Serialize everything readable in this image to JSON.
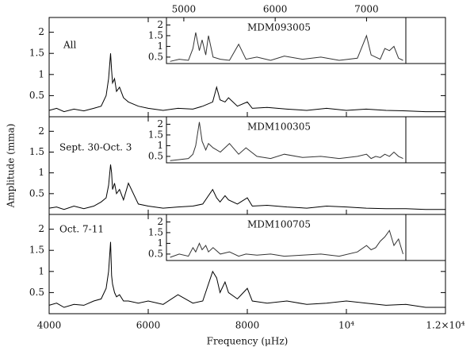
{
  "chart_data": [
    {
      "type": "line",
      "label": "All",
      "color": "#000000",
      "xlim": [
        4000,
        12000
      ],
      "ylim": [
        0,
        2.35
      ],
      "yticks": [
        0.5,
        1,
        1.5,
        2
      ],
      "x": [
        4000,
        4150,
        4300,
        4500,
        4700,
        4900,
        5050,
        5150,
        5200,
        5240,
        5260,
        5280,
        5320,
        5360,
        5420,
        5500,
        5600,
        5800,
        6000,
        6300,
        6600,
        6900,
        7100,
        7300,
        7380,
        7450,
        7550,
        7620,
        7800,
        8000,
        8100,
        8400,
        8800,
        9200,
        9600,
        10000,
        10400,
        10800,
        11200,
        11600,
        12000
      ],
      "values": [
        0.15,
        0.2,
        0.12,
        0.18,
        0.14,
        0.2,
        0.25,
        0.5,
        0.9,
        1.5,
        1.1,
        0.8,
        0.9,
        0.6,
        0.7,
        0.45,
        0.35,
        0.25,
        0.2,
        0.15,
        0.2,
        0.18,
        0.25,
        0.35,
        0.7,
        0.4,
        0.35,
        0.45,
        0.25,
        0.35,
        0.2,
        0.22,
        0.18,
        0.15,
        0.2,
        0.15,
        0.18,
        0.15,
        0.14,
        0.12,
        0.12
      ],
      "inset": {
        "title": "MDM093005",
        "xlim": [
          4810,
          7430
        ],
        "ylim": [
          0.2,
          2.35
        ],
        "xticks": [
          5000,
          6000,
          7000
        ],
        "yticks": [
          0.5,
          1,
          1.5,
          2
        ],
        "x": [
          4850,
          4950,
          5050,
          5100,
          5130,
          5170,
          5200,
          5240,
          5270,
          5320,
          5400,
          5500,
          5600,
          5680,
          5800,
          5950,
          6100,
          6300,
          6500,
          6700,
          6900,
          7000,
          7050,
          7100,
          7150,
          7200,
          7250,
          7300,
          7350,
          7400
        ],
        "values": [
          0.3,
          0.4,
          0.35,
          0.9,
          1.65,
          0.8,
          1.3,
          0.6,
          1.5,
          0.5,
          0.4,
          0.35,
          1.1,
          0.4,
          0.5,
          0.35,
          0.55,
          0.4,
          0.5,
          0.35,
          0.45,
          1.5,
          0.6,
          0.5,
          0.4,
          0.9,
          0.8,
          1.0,
          0.45,
          0.35
        ]
      }
    },
    {
      "type": "line",
      "label": "Sept. 30-Oct. 3",
      "color": "#000000",
      "y_label": "Amplitude (mma)",
      "xlim": [
        4000,
        12000
      ],
      "ylim": [
        0,
        2.35
      ],
      "yticks": [
        0.5,
        1,
        1.5,
        2
      ],
      "x": [
        4000,
        4150,
        4300,
        4500,
        4700,
        4900,
        5050,
        5150,
        5200,
        5240,
        5260,
        5280,
        5320,
        5360,
        5420,
        5500,
        5600,
        5800,
        6000,
        6300,
        6600,
        6900,
        7100,
        7300,
        7380,
        7450,
        7550,
        7620,
        7800,
        8000,
        8100,
        8400,
        8800,
        9200,
        9600,
        10000,
        10400,
        10800,
        11200,
        11600,
        12000
      ],
      "values": [
        0.15,
        0.18,
        0.12,
        0.2,
        0.14,
        0.2,
        0.3,
        0.4,
        0.7,
        1.2,
        1.0,
        0.6,
        0.75,
        0.5,
        0.6,
        0.35,
        0.75,
        0.25,
        0.2,
        0.15,
        0.18,
        0.2,
        0.25,
        0.6,
        0.4,
        0.3,
        0.45,
        0.35,
        0.25,
        0.4,
        0.2,
        0.22,
        0.18,
        0.15,
        0.2,
        0.18,
        0.15,
        0.14,
        0.14,
        0.12,
        0.12
      ],
      "inset": {
        "title": "MDM100305",
        "xlim": [
          4810,
          7430
        ],
        "ylim": [
          0.2,
          2.35
        ],
        "yticks": [
          0.5,
          1,
          1.5,
          2
        ],
        "x": [
          4850,
          4950,
          5050,
          5100,
          5130,
          5170,
          5200,
          5240,
          5270,
          5320,
          5400,
          5500,
          5600,
          5680,
          5800,
          5950,
          6100,
          6300,
          6500,
          6700,
          6900,
          7000,
          7050,
          7100,
          7150,
          7200,
          7250,
          7300,
          7350,
          7400
        ],
        "values": [
          0.3,
          0.35,
          0.4,
          0.6,
          1.0,
          2.1,
          1.2,
          0.8,
          1.1,
          0.9,
          0.7,
          1.1,
          0.6,
          0.9,
          0.5,
          0.4,
          0.6,
          0.45,
          0.5,
          0.4,
          0.5,
          0.6,
          0.4,
          0.5,
          0.45,
          0.6,
          0.5,
          0.7,
          0.5,
          0.4
        ]
      }
    },
    {
      "type": "line",
      "label": "Oct. 7-11",
      "color": "#000000",
      "x_label": "Frequency (μHz)",
      "xlim": [
        4000,
        12000
      ],
      "ylim": [
        0,
        2.35
      ],
      "yticks": [
        0.5,
        1,
        1.5,
        2
      ],
      "xticks": [
        4000,
        6000,
        8000,
        {
          "value": 10000,
          "label": "10⁴"
        },
        {
          "value": 12000,
          "label": "1.2×10⁴"
        }
      ],
      "x": [
        4000,
        4150,
        4300,
        4500,
        4700,
        4900,
        5050,
        5150,
        5200,
        5240,
        5260,
        5280,
        5320,
        5360,
        5420,
        5500,
        5600,
        5800,
        6000,
        6300,
        6600,
        6900,
        7100,
        7300,
        7380,
        7450,
        7550,
        7620,
        7800,
        8000,
        8100,
        8400,
        8800,
        9200,
        9600,
        10000,
        10400,
        10800,
        11200,
        11600,
        12000
      ],
      "values": [
        0.2,
        0.25,
        0.15,
        0.22,
        0.2,
        0.3,
        0.35,
        0.6,
        1.0,
        1.7,
        0.9,
        0.7,
        0.5,
        0.4,
        0.45,
        0.3,
        0.3,
        0.25,
        0.3,
        0.22,
        0.45,
        0.25,
        0.3,
        1.0,
        0.85,
        0.5,
        0.75,
        0.5,
        0.35,
        0.6,
        0.3,
        0.25,
        0.3,
        0.22,
        0.25,
        0.3,
        0.25,
        0.2,
        0.22,
        0.15,
        0.15
      ],
      "inset": {
        "title": "MDM100705",
        "xlim": [
          4810,
          7430
        ],
        "ylim": [
          0.2,
          2.35
        ],
        "yticks": [
          0.5,
          1,
          1.5,
          2
        ],
        "x": [
          4850,
          4950,
          5050,
          5100,
          5130,
          5170,
          5200,
          5240,
          5270,
          5320,
          5400,
          5500,
          5600,
          5680,
          5800,
          5950,
          6100,
          6300,
          6500,
          6700,
          6900,
          7000,
          7050,
          7100,
          7150,
          7200,
          7250,
          7300,
          7350,
          7400
        ],
        "values": [
          0.35,
          0.5,
          0.4,
          0.8,
          0.6,
          1.0,
          0.7,
          0.9,
          0.6,
          0.8,
          0.5,
          0.6,
          0.4,
          0.5,
          0.45,
          0.5,
          0.4,
          0.45,
          0.5,
          0.4,
          0.6,
          0.9,
          0.7,
          0.8,
          1.1,
          1.3,
          1.6,
          0.9,
          1.2,
          0.5
        ]
      }
    }
  ]
}
